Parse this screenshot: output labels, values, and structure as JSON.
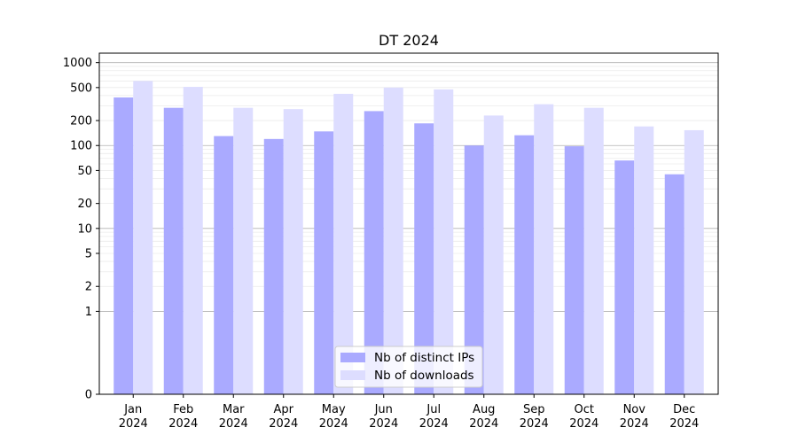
{
  "chart_data": {
    "type": "bar",
    "title": "DT 2024",
    "xlabel": "",
    "ylabel": "",
    "yscale": "symlog",
    "ylim": [
      0,
      1300
    ],
    "yticks": [
      0,
      1,
      2,
      5,
      10,
      20,
      50,
      100,
      200,
      500,
      1000
    ],
    "grid": true,
    "legend": "bottom-center",
    "categories": [
      [
        "Jan",
        "2024"
      ],
      [
        "Feb",
        "2024"
      ],
      [
        "Mar",
        "2024"
      ],
      [
        "Apr",
        "2024"
      ],
      [
        "May",
        "2024"
      ],
      [
        "Jun",
        "2024"
      ],
      [
        "Jul",
        "2024"
      ],
      [
        "Aug",
        "2024"
      ],
      [
        "Sep",
        "2024"
      ],
      [
        "Oct",
        "2024"
      ],
      [
        "Nov",
        "2024"
      ],
      [
        "Dec",
        "2024"
      ]
    ],
    "series": [
      {
        "name": "Nb of distinct IPs",
        "color": "#aaaaff",
        "values": [
          380,
          285,
          130,
          120,
          148,
          260,
          185,
          100,
          133,
          98,
          66,
          45
        ]
      },
      {
        "name": "Nb of downloads",
        "color": "#ddddff",
        "values": [
          600,
          510,
          285,
          275,
          420,
          500,
          475,
          230,
          315,
          285,
          170,
          153
        ]
      }
    ]
  }
}
